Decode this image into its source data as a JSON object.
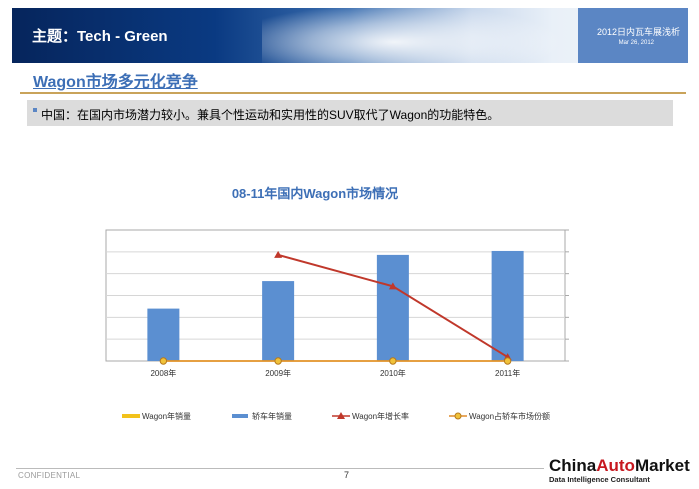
{
  "header": {
    "title": "主题：Tech - Green",
    "report_title": "2012日内瓦车展浅析",
    "date": "Mar 26, 2012"
  },
  "section": {
    "title": "Wagon市场多元化竞争",
    "bullet": "中国：在国内市场潜力较小。兼具个性运动和实用性的SUV取代了Wagon的功能特色。"
  },
  "chart_data": {
    "type": "bar",
    "title": "08-11年国内Wagon市场情况",
    "categories": [
      "2008年",
      "2009年",
      "2010年",
      "2011年"
    ],
    "series": [
      {
        "name": "Wagon年销量",
        "type": "line",
        "values": [
          0,
          0,
          0,
          0
        ]
      },
      {
        "name": "轿车年销量",
        "type": "bar",
        "values": [
          0.4,
          0.61,
          0.81,
          0.84
        ]
      },
      {
        "name": "Wagon年增长率",
        "type": "line",
        "values": [
          null,
          0.81,
          0.57,
          0.03
        ]
      },
      {
        "name": "Wagon占轿车市场份额",
        "type": "line",
        "values": [
          0.0,
          0.0,
          0.0,
          0.0
        ]
      }
    ],
    "colors": {
      "Wagon年销量": "#f2c21b",
      "轿车年销量": "#5b8fd1",
      "Wagon年增长率": "#c0382b",
      "Wagon占轿车市场份额": "#e08b2a"
    },
    "ylim": [
      0,
      1
    ],
    "grid": true,
    "legend": "bottom"
  },
  "footer": {
    "confidential": "CONFIDENTIAL",
    "page": "7",
    "logo_part1": "China",
    "logo_part2": "Auto",
    "logo_part3": "Market",
    "logo_sub": "Data Intelligence Consultant"
  }
}
